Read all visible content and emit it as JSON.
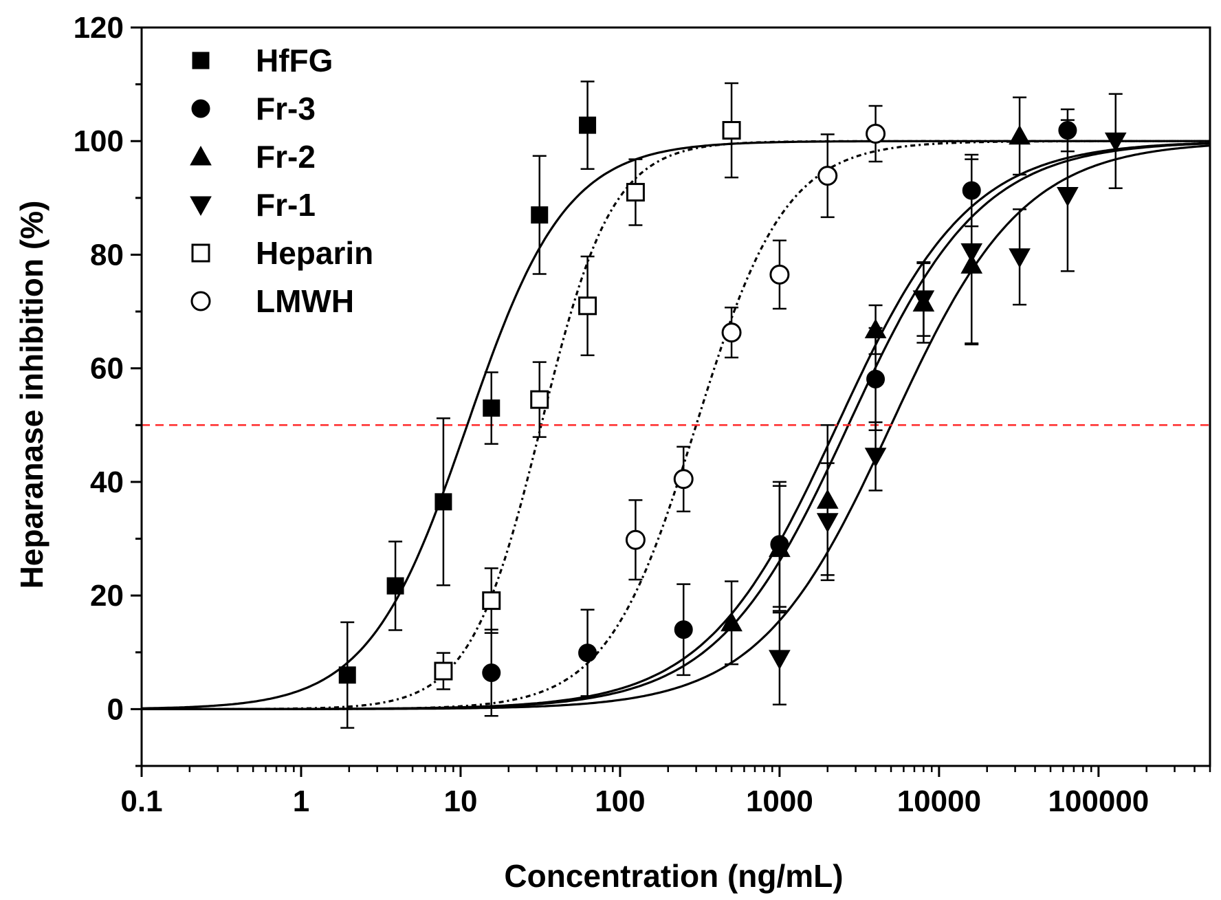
{
  "chart_data": {
    "type": "scatter",
    "title": "",
    "xlabel": "Concentration (ng/mL)",
    "ylabel": "Heparanase inhibition (%)",
    "xscale": "log",
    "xlim": [
      0.1,
      500000
    ],
    "ylim": [
      -10,
      120
    ],
    "x_tick_labels": [
      "0.1",
      "1",
      "10",
      "100",
      "1000",
      "10000",
      "100000"
    ],
    "x_tick_values": [
      0.1,
      1,
      10,
      100,
      1000,
      10000,
      100000
    ],
    "y_tick_labels": [
      "0",
      "20",
      "40",
      "60",
      "80",
      "100",
      "120"
    ],
    "y_tick_values": [
      0,
      20,
      40,
      60,
      80,
      100,
      120
    ],
    "grid": false,
    "legend_position": "top-left",
    "reference_line": {
      "y": 50,
      "style": "dashed",
      "color": "#ff2a2a"
    },
    "series": [
      {
        "name": "HfFG",
        "marker": "square",
        "filled": true,
        "fit_style": "solid",
        "ic50": 11,
        "hill": 1.4,
        "points": [
          {
            "x": 1.95,
            "y": 6,
            "err": 9.3
          },
          {
            "x": 3.9,
            "y": 21.7,
            "err": 7.8
          },
          {
            "x": 7.8,
            "y": 36.5,
            "err": 14.7
          },
          {
            "x": 15.6,
            "y": 53,
            "err": 6.3
          },
          {
            "x": 31.25,
            "y": 87,
            "err": 10.4
          },
          {
            "x": 62.5,
            "y": 102.8,
            "err": 7.7
          }
        ]
      },
      {
        "name": "Fr-3",
        "marker": "circle",
        "filled": true,
        "fit_style": "solid",
        "ic50": 2300,
        "hill": 1.05,
        "points": [
          {
            "x": 15.6,
            "y": 6.4,
            "err": 7.6
          },
          {
            "x": 62.5,
            "y": 9.9,
            "err": 7.6
          },
          {
            "x": 250,
            "y": 14,
            "err": 8
          },
          {
            "x": 1000,
            "y": 29,
            "err": 11
          },
          {
            "x": 4000,
            "y": 58.1,
            "err": 9
          },
          {
            "x": 16000,
            "y": 91.3,
            "err": 6.3
          },
          {
            "x": 64000,
            "y": 101.9,
            "err": 3.7
          }
        ]
      },
      {
        "name": "Fr-2",
        "marker": "triangle-up",
        "filled": true,
        "fit_style": "solid",
        "ic50": 2700,
        "hill": 1.05,
        "points": [
          {
            "x": 500,
            "y": 15.2,
            "err": 7.3
          },
          {
            "x": 1000,
            "y": 28.3,
            "err": 11
          },
          {
            "x": 2000,
            "y": 36.8,
            "err": 13.2
          },
          {
            "x": 4000,
            "y": 66.8,
            "err": 4.3
          },
          {
            "x": 8000,
            "y": 71.5,
            "err": 7
          },
          {
            "x": 16000,
            "y": 78.2,
            "err": 13.8
          },
          {
            "x": 32000,
            "y": 100.9,
            "err": 6.8
          }
        ]
      },
      {
        "name": "Fr-1",
        "marker": "triangle-down",
        "filled": true,
        "fit_style": "solid",
        "ic50": 5000,
        "hill": 1.05,
        "points": [
          {
            "x": 1000,
            "y": 8.9,
            "err": 8.1
          },
          {
            "x": 2000,
            "y": 33,
            "err": 10.3
          },
          {
            "x": 4000,
            "y": 44.5,
            "err": 6
          },
          {
            "x": 8000,
            "y": 72.2,
            "err": 6.5
          },
          {
            "x": 16000,
            "y": 80.5,
            "err": 16.3
          },
          {
            "x": 32000,
            "y": 79.6,
            "err": 8.4
          },
          {
            "x": 64000,
            "y": 90.4,
            "err": 13.3
          },
          {
            "x": 128000,
            "y": 100,
            "err": 8.3
          }
        ]
      },
      {
        "name": "Heparin",
        "marker": "square",
        "filled": false,
        "fit_style": "dash-dot",
        "ic50": 32,
        "hill": 1.95,
        "points": [
          {
            "x": 7.8,
            "y": 6.7,
            "err": 3.2
          },
          {
            "x": 15.6,
            "y": 19.1,
            "err": 5.7
          },
          {
            "x": 31.25,
            "y": 54.5,
            "err": 6.6
          },
          {
            "x": 62.5,
            "y": 71,
            "err": 8.7
          },
          {
            "x": 125,
            "y": 91,
            "err": 5.8
          },
          {
            "x": 500,
            "y": 101.9,
            "err": 8.3
          }
        ]
      },
      {
        "name": "LMWH",
        "marker": "circle",
        "filled": false,
        "fit_style": "dash-dot",
        "ic50": 300,
        "hill": 1.55,
        "points": [
          {
            "x": 125,
            "y": 29.8,
            "err": 7
          },
          {
            "x": 250,
            "y": 40.5,
            "err": 5.7
          },
          {
            "x": 500,
            "y": 66.3,
            "err": 4.4
          },
          {
            "x": 1000,
            "y": 76.5,
            "err": 6
          },
          {
            "x": 2000,
            "y": 93.9,
            "err": 7.3
          },
          {
            "x": 4000,
            "y": 101.3,
            "err": 4.9
          }
        ]
      }
    ]
  }
}
